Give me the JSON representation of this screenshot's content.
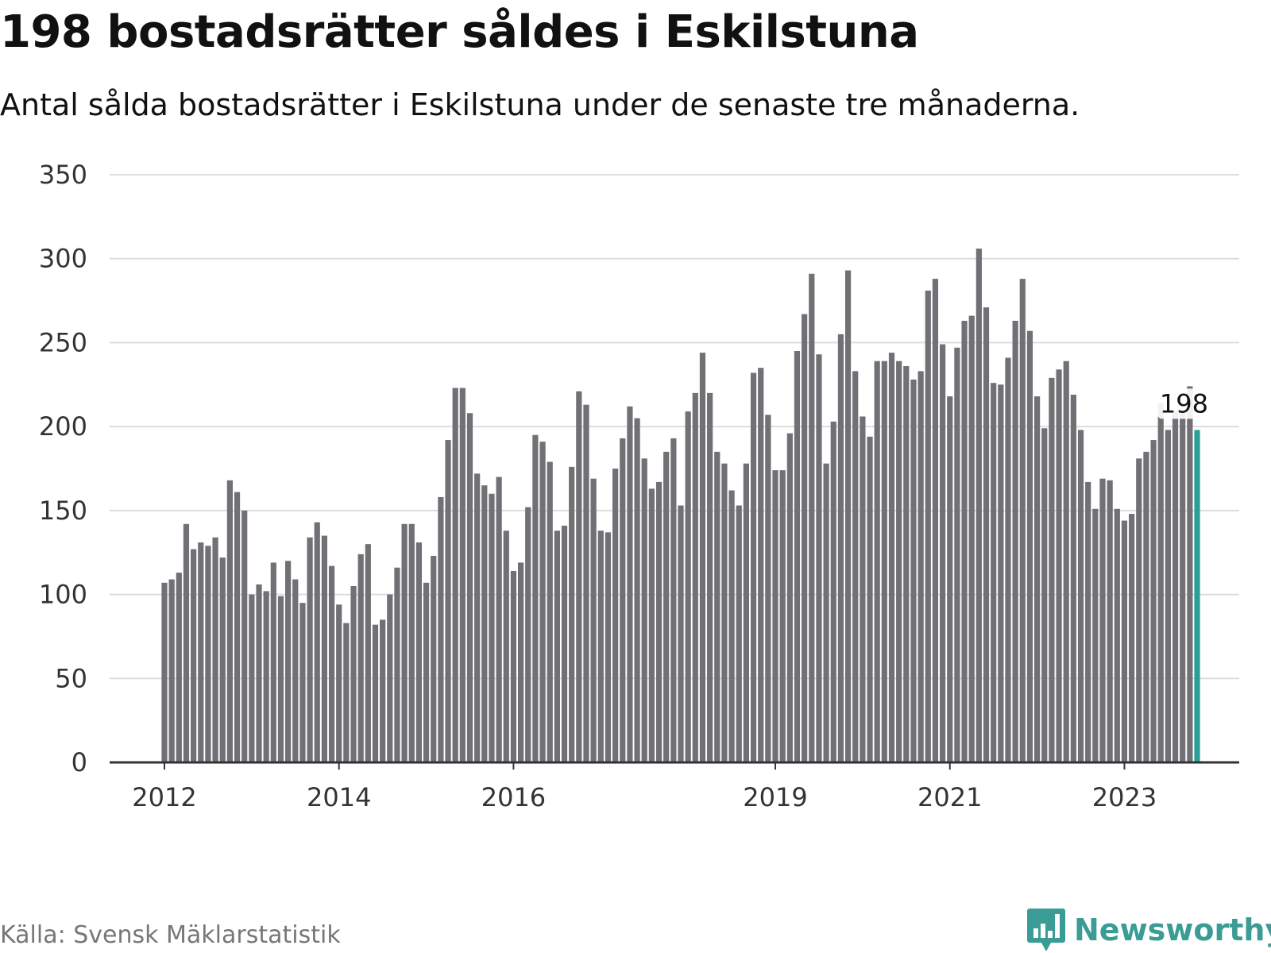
{
  "title": "198 bostadsrätter såldes i Eskilstuna",
  "subtitle": "Antal sålda bostadsrätter i Eskilstuna under de senaste tre månaderna.",
  "source": "Källa: Svensk Mäklarstatistik",
  "brand": "Newsworthy",
  "colors": {
    "bar": "#707075",
    "highlight": "#2aa198",
    "grid": "#dddddd",
    "axis": "#333333",
    "brand": "#3a9c94"
  },
  "icons": {
    "brand_logo": "bar-chart-speech-bubble-icon"
  },
  "chart_data": {
    "type": "bar",
    "x_start": "2012-01",
    "interval": "month",
    "ylim": [
      0,
      350
    ],
    "yticks": [
      0,
      50,
      100,
      150,
      200,
      250,
      300,
      350
    ],
    "xticks": [
      {
        "label": "2012",
        "index": 0
      },
      {
        "label": "2014",
        "index": 24
      },
      {
        "label": "2016",
        "index": 48
      },
      {
        "label": "2019",
        "index": 84
      },
      {
        "label": "2021",
        "index": 108
      },
      {
        "label": "2023",
        "index": 132
      }
    ],
    "grid": true,
    "highlight_last": true,
    "last_value_label": "198",
    "values": [
      107,
      109,
      113,
      142,
      127,
      131,
      129,
      134,
      122,
      168,
      161,
      150,
      100,
      106,
      102,
      119,
      99,
      120,
      109,
      95,
      134,
      143,
      135,
      117,
      94,
      83,
      105,
      124,
      130,
      82,
      85,
      100,
      116,
      142,
      142,
      131,
      107,
      123,
      158,
      192,
      223,
      223,
      208,
      172,
      165,
      160,
      170,
      138,
      114,
      119,
      152,
      195,
      191,
      179,
      138,
      141,
      176,
      221,
      213,
      169,
      138,
      137,
      175,
      193,
      212,
      205,
      181,
      163,
      167,
      185,
      193,
      153,
      209,
      220,
      244,
      220,
      185,
      178,
      162,
      153,
      178,
      232,
      235,
      207,
      174,
      174,
      196,
      245,
      267,
      291,
      243,
      178,
      203,
      255,
      293,
      233,
      206,
      194,
      239,
      239,
      244,
      239,
      236,
      228,
      233,
      281,
      288,
      249,
      218,
      247,
      263,
      266,
      306,
      271,
      226,
      225,
      241,
      263,
      288,
      257,
      218,
      199,
      229,
      234,
      239,
      219,
      198,
      167,
      151,
      169,
      168,
      151,
      144,
      148,
      181,
      185,
      192,
      214,
      198,
      209,
      208,
      224,
      198
    ]
  }
}
